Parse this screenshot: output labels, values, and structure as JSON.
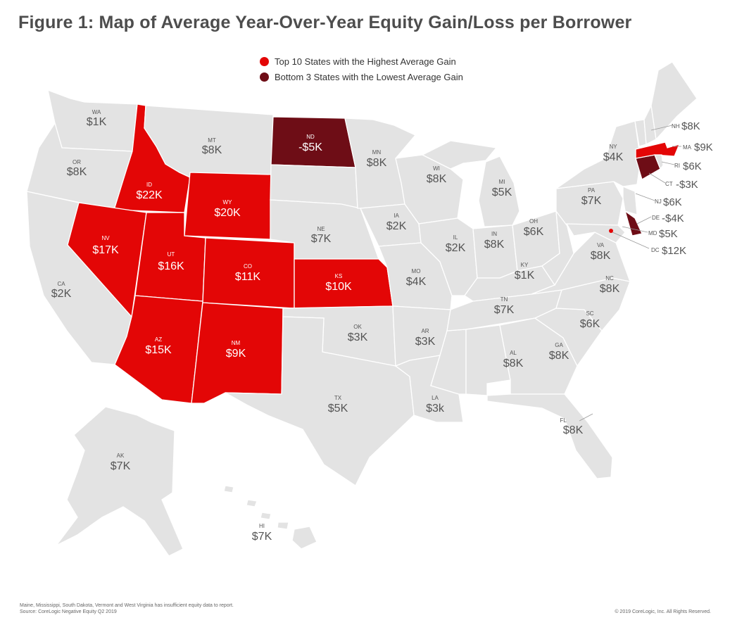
{
  "title": "Figure 1: Map of Average Year-Over-Year Equity Gain/Loss per Borrower",
  "legend": [
    {
      "label": "Top 10 States with the Highest Average Gain",
      "color": "#e30606"
    },
    {
      "label": "Bottom 3 States with the Lowest Average Gain",
      "color": "#6e0d16"
    }
  ],
  "map_colors": {
    "default": "#e3e3e3",
    "top": "#e30606",
    "bottom": "#6e0d16"
  },
  "states": {
    "WA": {
      "abbr": "WA",
      "value": "$1K"
    },
    "OR": {
      "abbr": "OR",
      "value": "$8K"
    },
    "CA": {
      "abbr": "CA",
      "value": "$2K"
    },
    "ID": {
      "abbr": "ID",
      "value": "$22K"
    },
    "NV": {
      "abbr": "NV",
      "value": "$17K"
    },
    "MT": {
      "abbr": "MT",
      "value": "$8K"
    },
    "WY": {
      "abbr": "WY",
      "value": "$20K"
    },
    "UT": {
      "abbr": "UT",
      "value": "$16K"
    },
    "CO": {
      "abbr": "CO",
      "value": "$11K"
    },
    "AZ": {
      "abbr": "AZ",
      "value": "$15K"
    },
    "NM": {
      "abbr": "NM",
      "value": "$9K"
    },
    "ND": {
      "abbr": "ND",
      "value": "-$5K"
    },
    "NE": {
      "abbr": "NE",
      "value": "$7K"
    },
    "KS": {
      "abbr": "KS",
      "value": "$10K"
    },
    "OK": {
      "abbr": "OK",
      "value": "$3K"
    },
    "TX": {
      "abbr": "TX",
      "value": "$5K"
    },
    "MN": {
      "abbr": "MN",
      "value": "$8K"
    },
    "IA": {
      "abbr": "IA",
      "value": "$2K"
    },
    "MO": {
      "abbr": "MO",
      "value": "$4K"
    },
    "AR": {
      "abbr": "AR",
      "value": "$3K"
    },
    "LA": {
      "abbr": "LA",
      "value": "$3k"
    },
    "WI": {
      "abbr": "WI",
      "value": "$8K"
    },
    "IL": {
      "abbr": "IL",
      "value": "$2K"
    },
    "MI": {
      "abbr": "MI",
      "value": "$5K"
    },
    "IN": {
      "abbr": "IN",
      "value": "$8K"
    },
    "OH": {
      "abbr": "OH",
      "value": "$6K"
    },
    "KY": {
      "abbr": "KY",
      "value": "$1K"
    },
    "TN": {
      "abbr": "TN",
      "value": "$7K"
    },
    "AL": {
      "abbr": "AL",
      "value": "$8K"
    },
    "GA": {
      "abbr": "GA",
      "value": "$8K"
    },
    "FL": {
      "abbr": "FL",
      "value": "$8K"
    },
    "SC": {
      "abbr": "SC",
      "value": "$6K"
    },
    "NC": {
      "abbr": "NC",
      "value": "$8K"
    },
    "VA": {
      "abbr": "VA",
      "value": "$8K"
    },
    "PA": {
      "abbr": "PA",
      "value": "$7K"
    },
    "NY": {
      "abbr": "NY",
      "value": "$4K"
    },
    "AK": {
      "abbr": "AK",
      "value": "$7K"
    },
    "HI": {
      "abbr": "HI",
      "value": "$7K"
    },
    "NH": {
      "abbr": "NH",
      "value": "$8K"
    },
    "MA": {
      "abbr": "MA",
      "value": "$9K"
    },
    "RI": {
      "abbr": "RI",
      "value": "$6K"
    },
    "CT": {
      "abbr": "CT",
      "value": "-$3K"
    },
    "NJ": {
      "abbr": "NJ",
      "value": "$6K"
    },
    "DE": {
      "abbr": "DE",
      "value": "-$4K"
    },
    "MD": {
      "abbr": "MD",
      "value": "$5K"
    },
    "DC": {
      "abbr": "DC",
      "value": "$12K"
    }
  },
  "footnote": [
    "Maine, Mississippi, South Dakota, Vermont and West Virginia has insufficient equity data to report.",
    "Source: CoreLogic Negative Equity Q2 2019"
  ],
  "copyright": "© 2019 CoreLogic, Inc. All Rights Reserved."
}
